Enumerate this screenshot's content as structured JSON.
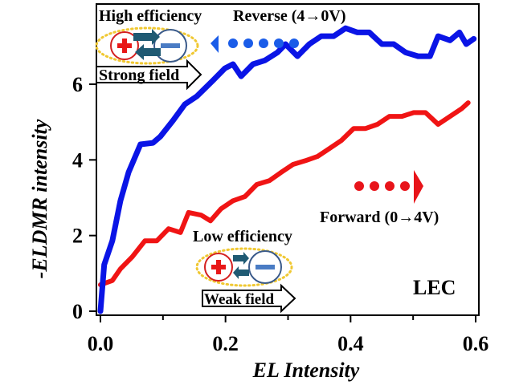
{
  "chart_data": {
    "type": "line",
    "title": "",
    "xlabel": "EL Intensity",
    "ylabel": "-ELDMR intensity",
    "xlim": [
      0.0,
      0.6
    ],
    "ylim": [
      0,
      7.5
    ],
    "xticks": [
      0.0,
      0.2,
      0.4,
      0.6
    ],
    "xtick_labels": [
      "0.0",
      "0.2",
      "0.4",
      "0.6"
    ],
    "xminor_ticks": [
      0.1,
      0.3,
      0.5
    ],
    "yticks": [
      0,
      2,
      4,
      6
    ],
    "ytick_labels": [
      "0",
      "2",
      "4",
      "6"
    ],
    "grid": false,
    "series": [
      {
        "name": "Reverse (4→0V)",
        "color": "#0a14e6",
        "x": [
          0,
          0.006,
          0.019,
          0.032,
          0.045,
          0.064,
          0.084,
          0.096,
          0.116,
          0.135,
          0.154,
          0.18,
          0.199,
          0.212,
          0.225,
          0.244,
          0.263,
          0.283,
          0.296,
          0.315,
          0.334,
          0.353,
          0.373,
          0.392,
          0.411,
          0.43,
          0.45,
          0.469,
          0.488,
          0.508,
          0.527,
          0.54,
          0.559,
          0.574,
          0.585,
          0.597
        ],
        "y": [
          0,
          1.23,
          1.86,
          2.92,
          3.67,
          4.41,
          4.45,
          4.62,
          5.04,
          5.47,
          5.68,
          6.1,
          6.42,
          6.53,
          6.21,
          6.53,
          6.63,
          6.84,
          7.06,
          6.74,
          7.06,
          7.27,
          7.27,
          7.48,
          7.37,
          7.37,
          7.06,
          7.06,
          6.84,
          6.74,
          6.74,
          7.27,
          7.16,
          7.37,
          7.06,
          7.2
        ]
      },
      {
        "name": "Forward (0→4V)",
        "color": "#f01414",
        "x": [
          0,
          0.019,
          0.032,
          0.051,
          0.071,
          0.09,
          0.109,
          0.128,
          0.141,
          0.161,
          0.176,
          0.193,
          0.212,
          0.231,
          0.25,
          0.27,
          0.289,
          0.308,
          0.328,
          0.347,
          0.366,
          0.385,
          0.405,
          0.424,
          0.443,
          0.462,
          0.482,
          0.501,
          0.52,
          0.54,
          0.559,
          0.578,
          0.588
        ],
        "y": [
          0.7,
          0.81,
          1.12,
          1.44,
          1.86,
          1.86,
          2.18,
          2.08,
          2.61,
          2.54,
          2.39,
          2.71,
          2.92,
          3.03,
          3.35,
          3.45,
          3.67,
          3.88,
          3.98,
          4.09,
          4.3,
          4.51,
          4.83,
          4.83,
          4.94,
          5.15,
          5.15,
          5.25,
          5.25,
          4.94,
          5.15,
          5.36,
          5.51
        ]
      }
    ],
    "annotations": {
      "reverse_label": "Reverse (4→0V)",
      "forward_label": "Forward (0→4V)",
      "high_efficiency": "High efficiency",
      "strong_field": "Strong field",
      "low_efficiency": "Low efficiency",
      "weak_field": "Weak field",
      "sample_label": "LEC",
      "plus_symbol": "+",
      "minus_symbol": "−"
    },
    "legend": "none"
  },
  "colors": {
    "reverse": "#0a14e6",
    "forward": "#f01414",
    "arrow_blue": "#1a5ce8",
    "arrow_red": "#e8141a",
    "teal_arrow": "#1f5a73",
    "minus_fill": "#4a7cc4",
    "minus_ring": "#3a5a8a",
    "dots_ring": "#f0c832"
  }
}
